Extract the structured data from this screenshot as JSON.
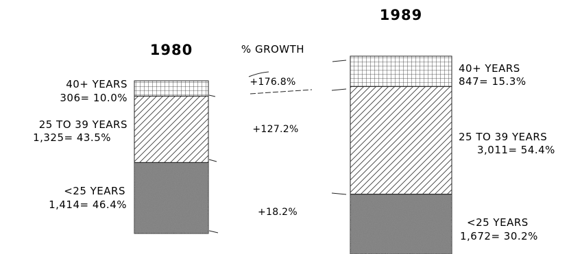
{
  "chart_data": {
    "type": "bar",
    "subtype": "stacked-100",
    "categories": [
      "1980",
      "1989"
    ],
    "growth_header": "% GROWTH",
    "segments": [
      {
        "key": "under25",
        "pattern": "stipple",
        "values": [
          1414,
          1672
        ],
        "percent": [
          46.4,
          30.2
        ],
        "label_name": [
          "<25 YEARS",
          "<25 YEARS"
        ],
        "label_value": [
          "1,414= 46.4%",
          "1,672= 30.2%"
        ],
        "growth": "+18.2%"
      },
      {
        "key": "age25to39",
        "pattern": "diagonal-hatch",
        "values": [
          1325,
          3011
        ],
        "percent": [
          43.5,
          54.4
        ],
        "label_name": [
          "25 TO 39 YEARS",
          "25 TO 39 YEARS"
        ],
        "label_value": [
          "1,325= 43.5%",
          "3,011= 54.4%"
        ],
        "growth": "+127.2%"
      },
      {
        "key": "over40",
        "pattern": "grid-hatch",
        "values": [
          306,
          847
        ],
        "percent": [
          10.0,
          15.3
        ],
        "label_name": [
          "40+ YEARS",
          "40+ YEARS"
        ],
        "label_value": [
          "306= 10.0%",
          "847= 15.3%"
        ],
        "growth": "+176.8%"
      }
    ]
  }
}
